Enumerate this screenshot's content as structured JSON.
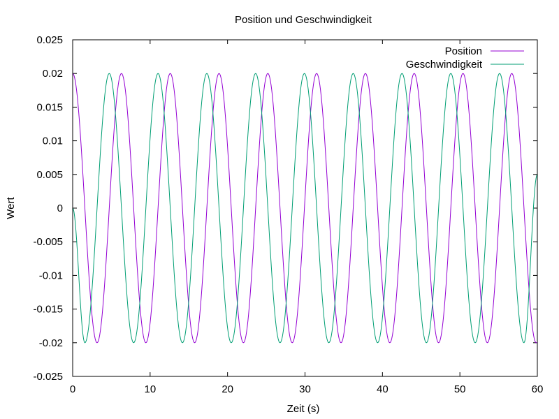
{
  "chart_data": {
    "type": "line",
    "title": "Position und Geschwindigkeit",
    "xlabel": "Zeit (s)",
    "ylabel": "Wert",
    "xlim": [
      0,
      60
    ],
    "ylim": [
      -0.025,
      0.025
    ],
    "x_ticks": [
      0,
      10,
      20,
      30,
      40,
      50,
      60
    ],
    "x_tick_labels": [
      "0",
      "10",
      "20",
      "30",
      "40",
      "50",
      "60"
    ],
    "y_ticks": [
      -0.025,
      -0.02,
      -0.015,
      -0.01,
      -0.005,
      0,
      0.005,
      0.01,
      0.015,
      0.02,
      0.025
    ],
    "y_tick_labels": [
      "-0.025",
      "-0.02",
      "-0.015",
      "-0.01",
      "-0.005",
      "0",
      "0.005",
      "0.01",
      "0.015",
      "0.02",
      "0.025"
    ],
    "grid": false,
    "legend_position": "top-right",
    "series": [
      {
        "name": "Position",
        "color": "#9400d3",
        "x": [
          0,
          3.15,
          6.3,
          9.45,
          12.6,
          15.75,
          18.9,
          22.05,
          25.2,
          28.35,
          31.5,
          34.65,
          37.8,
          40.95,
          44.1,
          47.25,
          50.4,
          53.55,
          56.7,
          59.85,
          60
        ],
        "y": [
          0.02,
          -0.02,
          0.02,
          -0.02,
          0.02,
          -0.02,
          0.02,
          -0.02,
          0.02,
          -0.02,
          0.02,
          -0.02,
          0.02,
          -0.02,
          0.02,
          -0.02,
          0.02,
          -0.02,
          0.02,
          -0.02,
          -0.02
        ]
      },
      {
        "name": "Geschwindigkeit",
        "color": "#009e73",
        "x": [
          0,
          1.575,
          4.725,
          7.875,
          11.025,
          14.175,
          17.325,
          20.475,
          23.625,
          26.775,
          29.925,
          33.075,
          36.225,
          39.375,
          42.525,
          45.675,
          48.825,
          51.975,
          55.125,
          58.275,
          60
        ],
        "y": [
          0,
          -0.02,
          0.02,
          -0.02,
          0.02,
          -0.02,
          0.02,
          -0.02,
          0.02,
          -0.02,
          0.02,
          -0.02,
          0.02,
          -0.02,
          0.02,
          -0.02,
          0.02,
          -0.02,
          0.02,
          -0.02,
          0.005
        ]
      }
    ]
  }
}
